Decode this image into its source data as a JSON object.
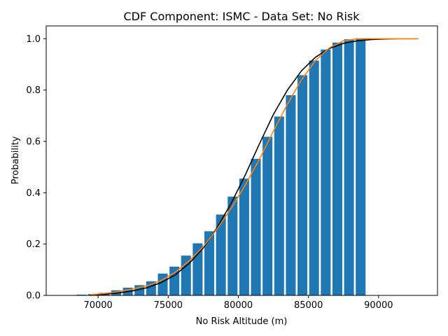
{
  "chart_data": {
    "type": "bar",
    "title": "CDF Component: ISMC - Data Set: No Risk",
    "xlabel": "No Risk Altitude (m)",
    "ylabel": "Probability",
    "xlim": [
      66300,
      94200
    ],
    "ylim": [
      0,
      1.05
    ],
    "xticks": [
      70000,
      75000,
      80000,
      85000,
      90000
    ],
    "yticks": [
      0.0,
      0.2,
      0.4,
      0.6,
      0.8,
      1.0
    ],
    "xtick_labels": [
      "70000",
      "75000",
      "80000",
      "85000",
      "90000"
    ],
    "ytick_labels": [
      "0.0",
      "0.2",
      "0.4",
      "0.6",
      "0.8",
      "1.0"
    ],
    "grid": false,
    "legend": "none",
    "bar_width": 700,
    "bars": {
      "color": "#1f77b4",
      "x": [
        68800,
        69630,
        70460,
        71290,
        72120,
        72950,
        73780,
        74610,
        75440,
        76270,
        77100,
        77930,
        78760,
        79590,
        80420,
        81250,
        82080,
        82910,
        83740,
        84570,
        85400,
        86230,
        87060,
        87890,
        88720
      ],
      "values": [
        0.003,
        0.005,
        0.01,
        0.02,
        0.03,
        0.04,
        0.055,
        0.085,
        0.112,
        0.155,
        0.203,
        0.25,
        0.315,
        0.385,
        0.455,
        0.532,
        0.618,
        0.697,
        0.78,
        0.858,
        0.915,
        0.958,
        0.985,
        0.998,
        1.0
      ]
    },
    "series": [
      {
        "color": "#000000",
        "x": [
          69500,
          70500,
          71500,
          72500,
          73500,
          74500,
          75500,
          76500,
          77500,
          78500,
          79500,
          80500,
          81500,
          82500,
          83500,
          84500,
          85500,
          86500,
          87500,
          88500,
          89500,
          90500,
          91500,
          92800
        ],
        "values": [
          0.0,
          0.005,
          0.01,
          0.018,
          0.03,
          0.05,
          0.08,
          0.125,
          0.185,
          0.265,
          0.36,
          0.47,
          0.59,
          0.705,
          0.8,
          0.875,
          0.928,
          0.962,
          0.982,
          0.992,
          0.997,
          0.999,
          1.0,
          1.0
        ]
      },
      {
        "color": "#ff7f0e",
        "x": [
          69500,
          70500,
          71500,
          72500,
          73500,
          74500,
          75500,
          76500,
          77500,
          78500,
          79500,
          80500,
          81500,
          82500,
          83500,
          84500,
          85500,
          86500,
          87500,
          88500,
          89000,
          90000,
          91000,
          92800
        ],
        "values": [
          0.003,
          0.008,
          0.015,
          0.025,
          0.038,
          0.058,
          0.09,
          0.135,
          0.19,
          0.26,
          0.34,
          0.43,
          0.53,
          0.64,
          0.745,
          0.84,
          0.915,
          0.965,
          0.992,
          1.0,
          1.0,
          1.0,
          1.0,
          1.0
        ]
      }
    ]
  }
}
